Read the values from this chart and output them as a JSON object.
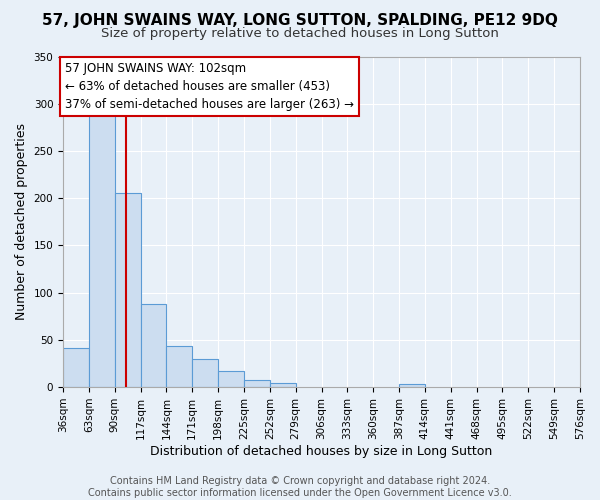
{
  "title": "57, JOHN SWAINS WAY, LONG SUTTON, SPALDING, PE12 9DQ",
  "subtitle": "Size of property relative to detached houses in Long Sutton",
  "xlabel": "Distribution of detached houses by size in Long Sutton",
  "ylabel": "Number of detached properties",
  "footer_line1": "Contains HM Land Registry data © Crown copyright and database right 2024.",
  "footer_line2": "Contains public sector information licensed under the Open Government Licence v3.0.",
  "bin_labels": [
    "36sqm",
    "63sqm",
    "90sqm",
    "117sqm",
    "144sqm",
    "171sqm",
    "198sqm",
    "225sqm",
    "252sqm",
    "279sqm",
    "306sqm",
    "333sqm",
    "360sqm",
    "387sqm",
    "414sqm",
    "441sqm",
    "468sqm",
    "495sqm",
    "522sqm",
    "549sqm",
    "576sqm"
  ],
  "bar_values": [
    41,
    293,
    205,
    88,
    43,
    30,
    17,
    8,
    4,
    0,
    0,
    0,
    0,
    3,
    0,
    0,
    0,
    0,
    0,
    0,
    0
  ],
  "bin_edges": [
    36,
    63,
    90,
    117,
    144,
    171,
    198,
    225,
    252,
    279,
    306,
    333,
    360,
    387,
    414,
    441,
    468,
    495,
    522,
    549,
    576
  ],
  "bar_color": "#ccddf0",
  "bar_edge_color": "#5b9bd5",
  "vline_x": 102,
  "vline_color": "#cc0000",
  "annotation_text": "57 JOHN SWAINS WAY: 102sqm\n← 63% of detached houses are smaller (453)\n37% of semi-detached houses are larger (263) →",
  "annotation_box_color": "#ffffff",
  "annotation_box_edge": "#cc0000",
  "ylim": [
    0,
    350
  ],
  "background_color": "#e8f0f8",
  "grid_color": "#ffffff",
  "title_fontsize": 11,
  "subtitle_fontsize": 9.5,
  "axis_label_fontsize": 9,
  "tick_fontsize": 7.5,
  "footer_fontsize": 7,
  "annotation_fontsize": 8.5
}
